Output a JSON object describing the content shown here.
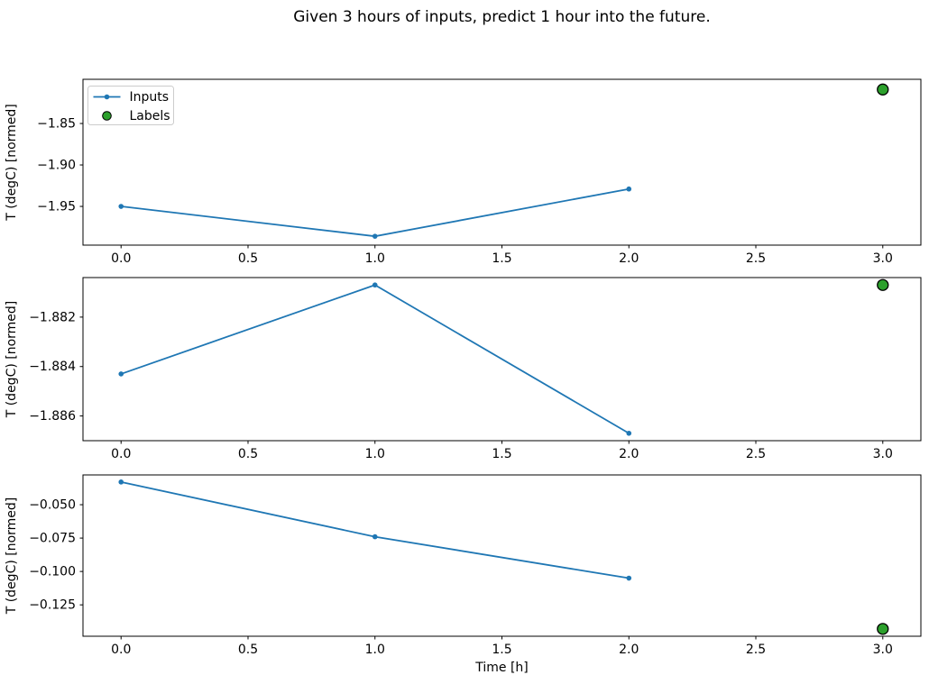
{
  "title": "Given 3 hours of inputs, predict 1 hour into the future.",
  "xlabel": "Time [h]",
  "ylabel": "T (degC) [normed]",
  "legend": {
    "position": "upper left of subplot 1",
    "items": [
      {
        "label": "Inputs",
        "marker": "line-with-dot-marker",
        "color": "#1f77b4"
      },
      {
        "label": "Labels",
        "marker": "circle",
        "color": "#2ca02c",
        "edge_color": "#000000"
      }
    ]
  },
  "colors": {
    "inputs_line": "#1f77b4",
    "labels_marker": "#2ca02c",
    "labels_marker_edge": "#000000",
    "spine": "#000000",
    "text": "#000000",
    "legend_border": "#cccccc",
    "background": "#ffffff"
  },
  "chart_data": [
    {
      "type": "line",
      "ylabel": "T (degC) [normed]",
      "x": [
        0.0,
        1.0,
        2.0
      ],
      "series": [
        {
          "name": "Inputs",
          "values": [
            -1.95,
            -1.986,
            -1.929
          ],
          "color": "#1f77b4"
        }
      ],
      "label_points": [
        {
          "name": "Labels",
          "x": 3.0,
          "y": -1.809,
          "color": "#2ca02c"
        }
      ],
      "xlim": [
        -0.15,
        3.15
      ],
      "ylim": [
        -1.9967,
        -1.7967
      ],
      "xticks": {
        "values": [
          0.0,
          0.5,
          1.0,
          1.5,
          2.0,
          2.5,
          3.0
        ],
        "labels": [
          "0.0",
          "0.5",
          "1.0",
          "1.5",
          "2.0",
          "2.5",
          "3.0"
        ]
      },
      "yticks": {
        "values": [
          -1.85,
          -1.9,
          -1.95
        ],
        "labels": [
          "−1.85",
          "−1.90",
          "−1.95"
        ]
      },
      "grid": false,
      "show_legend": true,
      "show_xlabel": false
    },
    {
      "type": "line",
      "ylabel": "T (degC) [normed]",
      "x": [
        0.0,
        1.0,
        2.0
      ],
      "series": [
        {
          "name": "Inputs",
          "values": [
            -1.8843,
            -1.8807,
            -1.8867
          ],
          "color": "#1f77b4"
        }
      ],
      "label_points": [
        {
          "name": "Labels",
          "x": 3.0,
          "y": -1.8807,
          "color": "#2ca02c"
        }
      ],
      "xlim": [
        -0.15,
        3.15
      ],
      "ylim": [
        -1.887,
        -1.8804
      ],
      "xticks": {
        "values": [
          0.0,
          0.5,
          1.0,
          1.5,
          2.0,
          2.5,
          3.0
        ],
        "labels": [
          "0.0",
          "0.5",
          "1.0",
          "1.5",
          "2.0",
          "2.5",
          "3.0"
        ]
      },
      "yticks": {
        "values": [
          -1.882,
          -1.884,
          -1.886
        ],
        "labels": [
          "−1.882",
          "−1.884",
          "−1.886"
        ]
      },
      "grid": false,
      "show_legend": false,
      "show_xlabel": false
    },
    {
      "type": "line",
      "ylabel": "T (degC) [normed]",
      "x": [
        0.0,
        1.0,
        2.0
      ],
      "series": [
        {
          "name": "Inputs",
          "values": [
            -0.033,
            -0.074,
            -0.105
          ],
          "color": "#1f77b4"
        }
      ],
      "label_points": [
        {
          "name": "Labels",
          "x": 3.0,
          "y": -0.143,
          "color": "#2ca02c"
        }
      ],
      "xlim": [
        -0.15,
        3.15
      ],
      "ylim": [
        -0.1485,
        -0.0277
      ],
      "xticks": {
        "values": [
          0.0,
          0.5,
          1.0,
          1.5,
          2.0,
          2.5,
          3.0
        ],
        "labels": [
          "0.0",
          "0.5",
          "1.0",
          "1.5",
          "2.0",
          "2.5",
          "3.0"
        ]
      },
      "yticks": {
        "values": [
          -0.05,
          -0.075,
          -0.1,
          -0.125
        ],
        "labels": [
          "−0.050",
          "−0.075",
          "−0.100",
          "−0.125"
        ]
      },
      "grid": false,
      "show_legend": false,
      "show_xlabel": true
    }
  ]
}
